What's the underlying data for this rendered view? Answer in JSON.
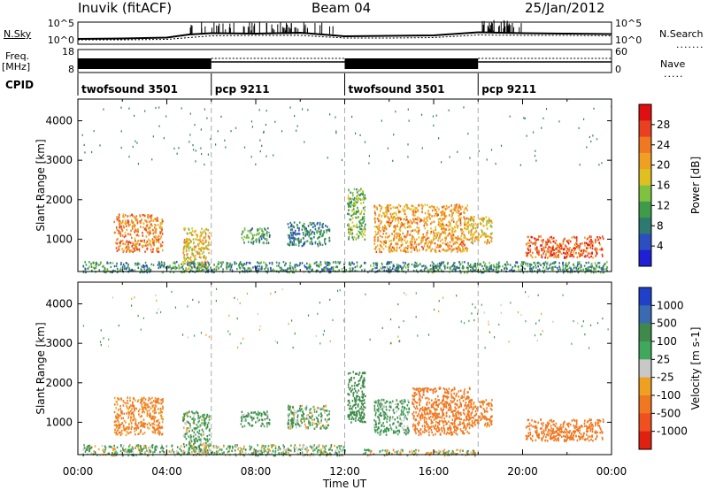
{
  "header": {
    "station": "Inuvik (fitACF)",
    "beam": "Beam 04",
    "date": "25/Jan/2012"
  },
  "left_labels": {
    "nsky": "N.Sky",
    "freq": "Freq.",
    "freq_unit": "[MHz]",
    "cpid": "CPID"
  },
  "right_labels": {
    "nsearch": "N.Search",
    "nave": "Nave"
  },
  "chart_data": [
    {
      "type": "line",
      "name": "noise-panel",
      "y_left_ticks": [
        "10^5",
        "10^0"
      ],
      "y_right_ticks": [
        "10^5",
        "10^0"
      ],
      "series": [
        {
          "name": "N.Sky",
          "x": [
            0,
            2,
            4,
            5,
            6,
            8,
            10,
            12,
            14,
            16,
            18,
            20,
            22,
            24
          ],
          "values": [
            1.2,
            1.3,
            1.5,
            2.2,
            2.5,
            2.4,
            2.6,
            1.8,
            1.9,
            2.0,
            2.7,
            2.5,
            2.4,
            2.3
          ]
        },
        {
          "name": "N.Search",
          "x": [
            0,
            2,
            4,
            6,
            8,
            10,
            12,
            14,
            16,
            18,
            20,
            22,
            24
          ],
          "values": [
            1.0,
            1.0,
            1.1,
            1.9,
            2.0,
            2.0,
            1.4,
            1.4,
            1.5,
            2.1,
            2.0,
            2.0,
            1.9
          ]
        }
      ]
    },
    {
      "type": "line",
      "name": "freq-nave-panel",
      "y_left_ticks": [
        "18",
        "8"
      ],
      "y_right_ticks": [
        "60",
        "0"
      ],
      "segments": [
        {
          "cpid": "twofsound 3501",
          "start": 0,
          "end": 6
        },
        {
          "cpid": "pcp 9211",
          "start": 6,
          "end": 12
        },
        {
          "cpid": "twofsound 3501",
          "start": 12,
          "end": 18
        },
        {
          "cpid": "pcp 9211",
          "start": 18,
          "end": 24
        }
      ]
    },
    {
      "type": "heatmap",
      "name": "power",
      "ylabel": "Slant Range [km]",
      "ylim": [
        180,
        4550
      ],
      "yticks": [
        1000,
        2000,
        3000,
        4000
      ],
      "colorbar_label": "Power [dB]",
      "colorbar_ticks": [
        "28",
        "24",
        "20",
        "16",
        "12",
        "8",
        "4"
      ],
      "colorbar_colors": [
        "#1f1fd6",
        "#2b4fc0",
        "#2f7a70",
        "#3f9a4a",
        "#7fc240",
        "#e0c020",
        "#f0a020",
        "#f07820",
        "#e84020",
        "#e01010"
      ],
      "blobs": [
        {
          "t0": 1.6,
          "t1": 3.8,
          "r0": 700,
          "r1": 1650,
          "v": 22
        },
        {
          "t0": 4.7,
          "t1": 5.9,
          "r0": 250,
          "r1": 1300,
          "v": 18
        },
        {
          "t0": 7.3,
          "t1": 8.6,
          "r0": 900,
          "r1": 1300,
          "v": 10
        },
        {
          "t0": 9.4,
          "t1": 11.3,
          "r0": 850,
          "r1": 1450,
          "v": 8
        },
        {
          "t0": 12.1,
          "t1": 12.9,
          "r0": 1000,
          "r1": 2300,
          "v": 12
        },
        {
          "t0": 13.3,
          "t1": 17.5,
          "r0": 700,
          "r1": 1900,
          "v": 20
        },
        {
          "t0": 17.5,
          "t1": 18.6,
          "r0": 900,
          "r1": 1600,
          "v": 18
        },
        {
          "t0": 20.1,
          "t1": 23.6,
          "r0": 550,
          "r1": 1100,
          "v": 24
        },
        {
          "t0": 0.2,
          "t1": 23.8,
          "r0": 180,
          "r1": 450,
          "v": 9
        }
      ]
    },
    {
      "type": "heatmap",
      "name": "velocity",
      "ylabel": "Slant Range [km]",
      "ylim": [
        180,
        4550
      ],
      "yticks": [
        1000,
        2000,
        3000,
        4000
      ],
      "xlabel": "Time UT",
      "xticks": [
        "00:00",
        "04:00",
        "08:00",
        "12:00",
        "16:00",
        "20:00",
        "00:00"
      ],
      "colorbar_label": "Velocity [m s-1]",
      "colorbar_ticks": [
        "1000",
        "500",
        "100",
        "25",
        "-25",
        "-100",
        "-500",
        "-1000"
      ],
      "colorbar_colors": [
        "#2040c8",
        "#3a6ab0",
        "#3f8a4a",
        "#3fa85a",
        "#c8c8c8",
        "#f0a020",
        "#f07820",
        "#f05020",
        "#e02010"
      ],
      "blobs": [
        {
          "t0": 1.6,
          "t1": 3.8,
          "r0": 700,
          "r1": 1650,
          "v": -150
        },
        {
          "t0": 4.7,
          "t1": 5.9,
          "r0": 250,
          "r1": 1300,
          "v": 80
        },
        {
          "t0": 7.3,
          "t1": 8.6,
          "r0": 900,
          "r1": 1300,
          "v": 120
        },
        {
          "t0": 9.4,
          "t1": 11.3,
          "r0": 850,
          "r1": 1450,
          "v": 60
        },
        {
          "t0": 12.1,
          "t1": 12.9,
          "r0": 1000,
          "r1": 2300,
          "v": 300
        },
        {
          "t0": 15.0,
          "t1": 17.6,
          "r0": 700,
          "r1": 1900,
          "v": -300
        },
        {
          "t0": 13.3,
          "t1": 14.9,
          "r0": 700,
          "r1": 1600,
          "v": 100
        },
        {
          "t0": 17.5,
          "t1": 18.6,
          "r0": 900,
          "r1": 1600,
          "v": -200
        },
        {
          "t0": 20.1,
          "t1": 23.6,
          "r0": 550,
          "r1": 1100,
          "v": -300
        },
        {
          "t0": 12.8,
          "t1": 17.9,
          "r0": 180,
          "r1": 330,
          "v": 0
        },
        {
          "t0": 0.2,
          "t1": 12.0,
          "r0": 180,
          "r1": 450,
          "v": 50
        }
      ]
    }
  ]
}
